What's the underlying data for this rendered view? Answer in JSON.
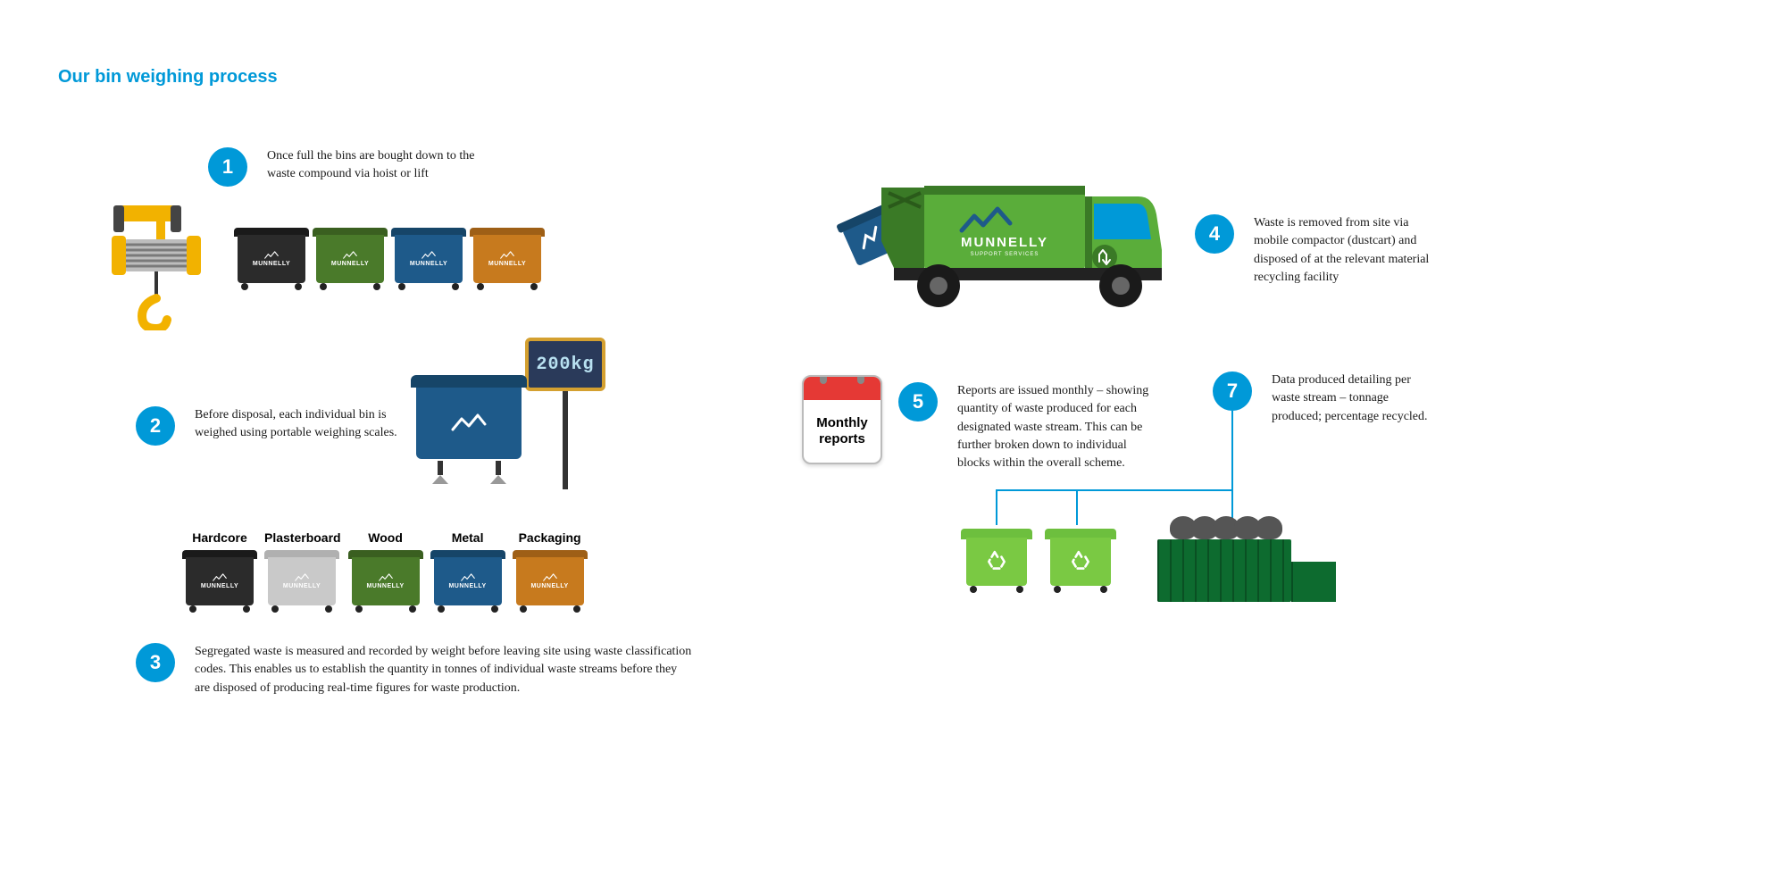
{
  "title": "Our bin weighing process",
  "brand": "MUNNELLY",
  "accent_color": "#0099d8",
  "steps": {
    "s1": {
      "num": "1",
      "text": "Once full the bins are bought down to the waste compound via hoist or lift"
    },
    "s2": {
      "num": "2",
      "text": "Before disposal, each individual bin is weighed using portable weighing scales."
    },
    "s3": {
      "num": "3",
      "text": "Segregated waste is measured and recorded by weight before leaving site using waste classification codes. This enables us to establish the quantity in tonnes of individual waste streams before they are disposed of producing real-time figures for waste production."
    },
    "s4": {
      "num": "4",
      "text": "Waste is removed from site via mobile compactor (dustcart) and disposed of at the relevant material recycling facility"
    },
    "s5": {
      "num": "5",
      "text": "Reports are issued monthly – showing quantity of waste produced for each designated waste stream. This can be further broken down to individual blocks within the overall scheme."
    },
    "s7": {
      "num": "7",
      "text": "Data produced detailing per waste stream – tonnage produced; percentage recycled."
    }
  },
  "scale_reading": "200kg",
  "calendar_text": "Monthly reports",
  "bin_row1": [
    {
      "body": "#2b2b2b",
      "lid": "#1a1a1a"
    },
    {
      "body": "#4a7a2a",
      "lid": "#3a5f20"
    },
    {
      "body": "#1e5a8a",
      "lid": "#164568"
    },
    {
      "body": "#c77a1e",
      "lid": "#9e5f16"
    }
  ],
  "bin_row2": [
    {
      "label": "Hardcore",
      "body": "#2b2b2b",
      "lid": "#1a1a1a"
    },
    {
      "label": "Plasterboard",
      "body": "#c9c9c9",
      "lid": "#b0b0b0"
    },
    {
      "label": "Wood",
      "body": "#4a7a2a",
      "lid": "#3a5f20"
    },
    {
      "label": "Metal",
      "body": "#1e5a8a",
      "lid": "#164568"
    },
    {
      "label": "Packaging",
      "body": "#c77a1e",
      "lid": "#9e5f16"
    }
  ],
  "colors": {
    "truck_body": "#5aad3a",
    "truck_dark": "#3a7a26",
    "truck_cab_window": "#0099d8",
    "hoist_yellow": "#f2b200",
    "hoist_grey": "#8a8a8a",
    "skip_green": "#0d6b2f",
    "rbin_green": "#7ac943"
  }
}
